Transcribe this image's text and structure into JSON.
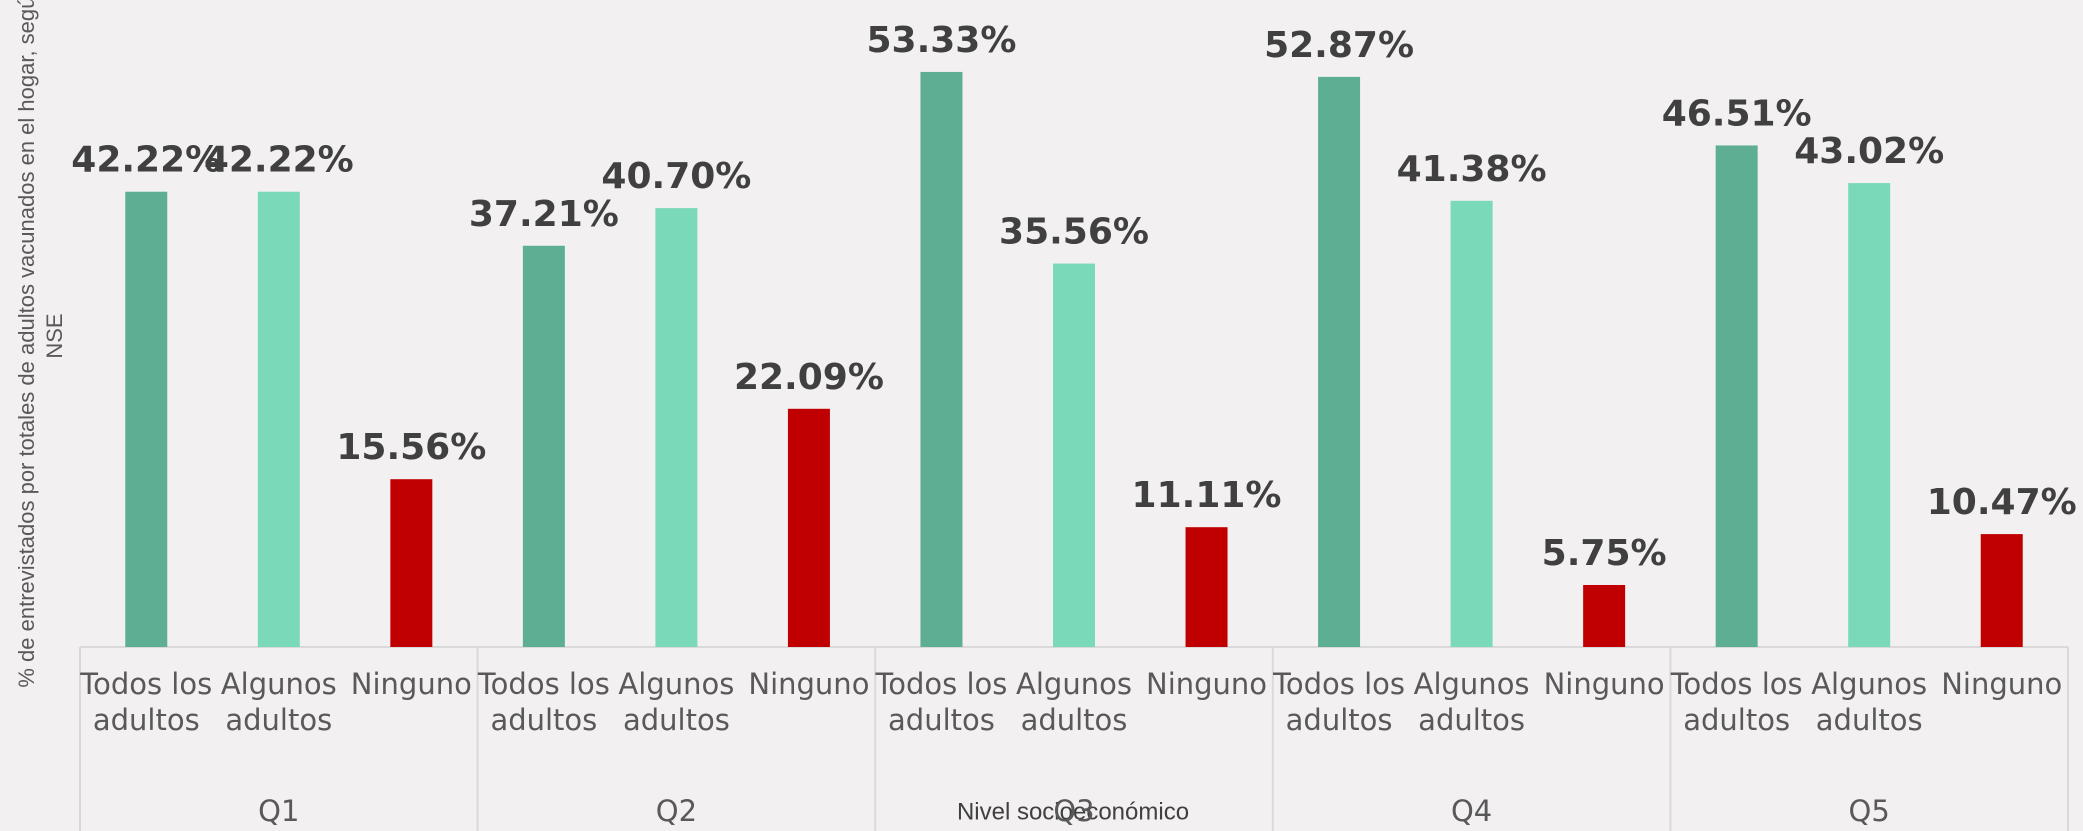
{
  "chart_data": {
    "type": "bar",
    "y_label": "% de entrevistados por totales de adultos vacunados en el hogar, según NSE",
    "x_label": "Nivel socioeconómico",
    "categories": [
      "Q1",
      "Q2",
      "Q3",
      "Q4",
      "Q5"
    ],
    "series": [
      {
        "name": "Todos los adultos",
        "color": "#5dae93",
        "values": [
          42.22,
          37.21,
          53.33,
          52.87,
          46.51
        ],
        "value_labels": [
          "42.22%",
          "37.21%",
          "53.33%",
          "52.87%",
          "46.51%"
        ]
      },
      {
        "name": "Algunos adultos",
        "color": "#79d9b9",
        "values": [
          42.22,
          40.7,
          35.56,
          41.38,
          43.02
        ],
        "value_labels": [
          "42.22%",
          "40.70%",
          "35.56%",
          "41.38%",
          "43.02%"
        ]
      },
      {
        "name": "Ninguno",
        "color": "#c00000",
        "values": [
          15.56,
          22.09,
          11.11,
          5.75,
          10.47
        ],
        "value_labels": [
          "15.56%",
          "22.09%",
          "11.11%",
          "5.75%",
          "10.47%"
        ]
      }
    ],
    "ylim": [
      0,
      60
    ]
  }
}
